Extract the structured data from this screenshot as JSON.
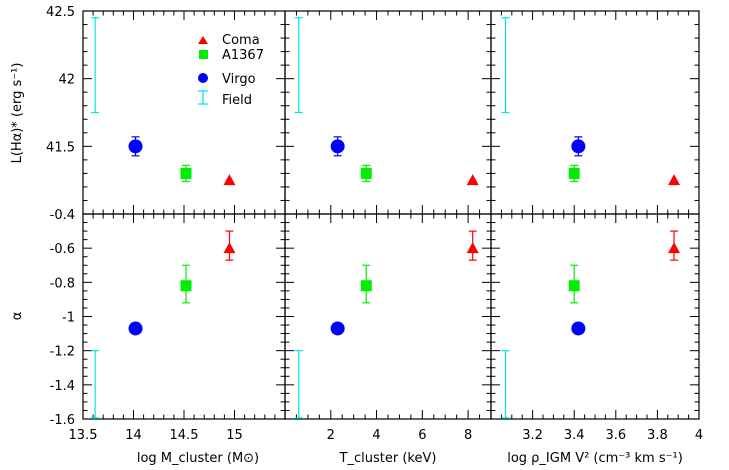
{
  "legend": [
    {
      "label": "Coma",
      "marker": "triangle",
      "color": "#ff0000"
    },
    {
      "label": "A1367",
      "marker": "square",
      "color": "#00ee00"
    },
    {
      "label": "Virgo",
      "marker": "circle",
      "color": "#0000ff"
    },
    {
      "label": "Field",
      "marker": "errorbar",
      "color": "#00e5e5"
    }
  ],
  "y_axes": [
    {
      "label": "L(Hα)* (erg s⁻¹)",
      "ticks": [
        "42.5",
        "42",
        "41.5",
        "-0.4"
      ]
    },
    {
      "label": "α",
      "ticks": [
        "-0.6",
        "-0.8",
        "-1",
        "-1.2",
        "-1.4",
        "-1.6"
      ]
    }
  ],
  "x_axes": [
    {
      "label": "log M_cluster (M⊙)",
      "ticks": [
        "13.5",
        "14",
        "14.5",
        "15"
      ]
    },
    {
      "label": "T_cluster (keV)",
      "ticks": [
        "2",
        "4",
        "6",
        "8"
      ]
    },
    {
      "label": "log ρ_IGM V² (cm⁻³ km s⁻¹)",
      "ticks": [
        "3.2",
        "3.4",
        "3.6",
        "3.8",
        "4"
      ]
    }
  ],
  "chart_data": {
    "type": "scatter",
    "grid": false,
    "legend_position": "top-left panel",
    "rows": [
      {
        "quantity": "L(Hα)*",
        "unit": "erg s⁻¹",
        "ylim": [
          41.0,
          42.5
        ]
      },
      {
        "quantity": "α",
        "ylim": [
          -1.6,
          -0.4
        ]
      }
    ],
    "columns": [
      {
        "quantity": "log M_cluster",
        "unit": "M⊙",
        "xlim": [
          13.5,
          15.5
        ]
      },
      {
        "quantity": "T_cluster",
        "unit": "keV",
        "xlim": [
          0.0,
          9.0
        ]
      },
      {
        "quantity": "log ρ_IGM V²",
        "unit": "cm⁻³ km s⁻¹",
        "xlim": [
          3.0,
          4.0
        ]
      }
    ],
    "series": [
      {
        "name": "Coma",
        "x": [
          14.95,
          8.2,
          3.88
        ],
        "L": 41.25,
        "L_err": [
          0,
          0
        ],
        "alpha": -0.6,
        "alpha_err": [
          0.07,
          0.1
        ]
      },
      {
        "name": "A1367",
        "x": [
          14.52,
          3.55,
          3.4
        ],
        "L": 41.3,
        "L_err": [
          0.06,
          0.06
        ],
        "alpha": -0.82,
        "alpha_err": [
          0.1,
          0.12
        ]
      },
      {
        "name": "Virgo",
        "x": [
          14.02,
          2.3,
          3.42
        ],
        "L": 41.5,
        "L_err": [
          0.07,
          0.07
        ],
        "alpha": -1.07,
        "alpha_err": [
          0,
          0
        ]
      },
      {
        "name": "Field",
        "L_range": [
          41.75,
          42.45
        ],
        "alpha_range": [
          -1.6,
          -1.2
        ]
      }
    ]
  }
}
